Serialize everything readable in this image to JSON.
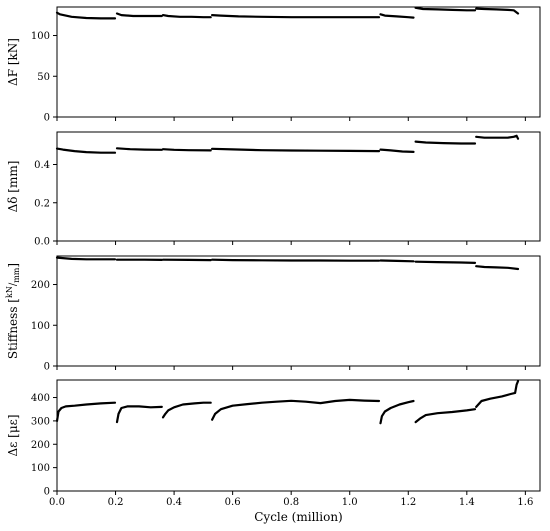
{
  "chart_data": [
    {
      "type": "line",
      "ylabel": "ΔF [kN]",
      "ylim": [
        0,
        135
      ],
      "xlim": [
        0,
        1.65
      ],
      "yticks": [
        0,
        50,
        100
      ],
      "segments": [
        {
          "x": [
            0.0,
            0.01,
            0.05,
            0.1,
            0.15,
            0.198
          ],
          "y": [
            128,
            126,
            123,
            121.5,
            121,
            121
          ]
        },
        {
          "x": [
            0.205,
            0.22,
            0.26,
            0.3,
            0.34,
            0.358
          ],
          "y": [
            127,
            125,
            124,
            124,
            124,
            124
          ]
        },
        {
          "x": [
            0.362,
            0.38,
            0.42,
            0.46,
            0.5,
            0.525
          ],
          "y": [
            125,
            124,
            123,
            123,
            122.5,
            122.5
          ]
        },
        {
          "x": [
            0.53,
            0.56,
            0.62,
            0.7,
            0.8,
            0.9,
            1.0,
            1.05,
            1.1
          ],
          "y": [
            125,
            124.5,
            123.5,
            123,
            122.5,
            122.5,
            122.5,
            122.5,
            122.5
          ]
        },
        {
          "x": [
            1.105,
            1.12,
            1.16,
            1.2,
            1.218
          ],
          "y": [
            126,
            124.5,
            123.5,
            122.5,
            122
          ]
        },
        {
          "x": [
            1.225,
            1.25,
            1.3,
            1.35,
            1.4,
            1.428
          ],
          "y": [
            134,
            132.5,
            132,
            131.5,
            131,
            131
          ]
        },
        {
          "x": [
            1.432,
            1.46,
            1.5,
            1.54,
            1.56,
            1.575
          ],
          "y": [
            133,
            132.5,
            132,
            131.5,
            131,
            127
          ]
        }
      ]
    },
    {
      "type": "line",
      "ylabel": "Δδ [mm]",
      "ylim": [
        0,
        0.57
      ],
      "xlim": [
        0,
        1.65
      ],
      "yticks": [
        0.0,
        0.2,
        0.4
      ],
      "yticklabels": [
        "0.0",
        "0.2",
        "0.4"
      ],
      "segments": [
        {
          "x": [
            0.0,
            0.02,
            0.06,
            0.1,
            0.15,
            0.198
          ],
          "y": [
            0.483,
            0.478,
            0.47,
            0.465,
            0.462,
            0.462
          ]
        },
        {
          "x": [
            0.205,
            0.25,
            0.3,
            0.358
          ],
          "y": [
            0.485,
            0.48,
            0.478,
            0.477
          ]
        },
        {
          "x": [
            0.362,
            0.4,
            0.45,
            0.525
          ],
          "y": [
            0.48,
            0.477,
            0.475,
            0.474
          ]
        },
        {
          "x": [
            0.53,
            0.6,
            0.7,
            0.8,
            0.9,
            1.0,
            1.1
          ],
          "y": [
            0.482,
            0.479,
            0.475,
            0.473,
            0.472,
            0.471,
            0.47
          ]
        },
        {
          "x": [
            1.105,
            1.14,
            1.18,
            1.218
          ],
          "y": [
            0.478,
            0.474,
            0.468,
            0.466
          ]
        },
        {
          "x": [
            1.225,
            1.26,
            1.32,
            1.38,
            1.428
          ],
          "y": [
            0.52,
            0.515,
            0.512,
            0.51,
            0.51
          ]
        },
        {
          "x": [
            1.432,
            1.46,
            1.5,
            1.54,
            1.56,
            1.57,
            1.575
          ],
          "y": [
            0.545,
            0.54,
            0.54,
            0.54,
            0.545,
            0.55,
            0.535
          ]
        }
      ]
    },
    {
      "type": "line",
      "ylabel": "Stiffness [kN/mm]",
      "ylabel_main": "Stiffness [",
      "ylabel_num": "kN",
      "ylabel_den": "mm",
      "ylabel_close": "]",
      "ylim": [
        0,
        270
      ],
      "xlim": [
        0,
        1.65
      ],
      "yticks": [
        0,
        100,
        200
      ],
      "segments": [
        {
          "x": [
            0.0,
            0.05,
            0.1,
            0.15,
            0.198
          ],
          "y": [
            266,
            263,
            262,
            262,
            262
          ]
        },
        {
          "x": [
            0.205,
            0.3,
            0.358
          ],
          "y": [
            261,
            261,
            260.5
          ]
        },
        {
          "x": [
            0.362,
            0.45,
            0.525
          ],
          "y": [
            261,
            260.5,
            260
          ]
        },
        {
          "x": [
            0.53,
            0.6,
            0.7,
            0.8,
            0.9,
            1.0,
            1.1
          ],
          "y": [
            261,
            260,
            259.5,
            259,
            259,
            258.5,
            258.5
          ]
        },
        {
          "x": [
            1.105,
            1.16,
            1.218
          ],
          "y": [
            259,
            258,
            257
          ]
        },
        {
          "x": [
            1.225,
            1.3,
            1.38,
            1.428
          ],
          "y": [
            256,
            255,
            254,
            253
          ]
        },
        {
          "x": [
            1.432,
            1.46,
            1.5,
            1.54,
            1.575
          ],
          "y": [
            245,
            243,
            242,
            241,
            238
          ]
        }
      ]
    },
    {
      "type": "line",
      "ylabel": "Δε [με]",
      "ylim": [
        0,
        475
      ],
      "xlim": [
        0,
        1.65
      ],
      "xlabel": "Cycle (million)",
      "xticks": [
        0.0,
        0.2,
        0.4,
        0.6,
        0.8,
        1.0,
        1.2,
        1.4,
        1.6
      ],
      "xticklabels": [
        "0.0",
        "0.2",
        "0.4",
        "0.6",
        "0.8",
        "1.0",
        "1.2",
        "1.4",
        "1.6"
      ],
      "yticks": [
        0,
        100,
        200,
        300,
        400
      ],
      "segments": [
        {
          "x": [
            0.0,
            0.005,
            0.015,
            0.03,
            0.06,
            0.1,
            0.15,
            0.198
          ],
          "y": [
            300,
            340,
            355,
            362,
            365,
            370,
            375,
            378
          ]
        },
        {
          "x": [
            0.205,
            0.21,
            0.22,
            0.24,
            0.28,
            0.32,
            0.358
          ],
          "y": [
            295,
            330,
            355,
            362,
            362,
            358,
            360
          ]
        },
        {
          "x": [
            0.362,
            0.37,
            0.38,
            0.4,
            0.43,
            0.47,
            0.5,
            0.525
          ],
          "y": [
            315,
            330,
            345,
            358,
            370,
            375,
            378,
            378
          ]
        },
        {
          "x": [
            0.53,
            0.54,
            0.56,
            0.6,
            0.65,
            0.7,
            0.75,
            0.8,
            0.85,
            0.9,
            0.95,
            1.0,
            1.05,
            1.1
          ],
          "y": [
            305,
            330,
            350,
            365,
            372,
            378,
            382,
            386,
            382,
            376,
            385,
            390,
            387,
            385
          ]
        },
        {
          "x": [
            1.105,
            1.11,
            1.12,
            1.14,
            1.17,
            1.2,
            1.218
          ],
          "y": [
            290,
            320,
            340,
            355,
            370,
            380,
            385
          ]
        },
        {
          "x": [
            1.225,
            1.24,
            1.26,
            1.3,
            1.35,
            1.4,
            1.428
          ],
          "y": [
            295,
            310,
            325,
            333,
            338,
            345,
            350
          ]
        },
        {
          "x": [
            1.432,
            1.45,
            1.48,
            1.52,
            1.55,
            1.565,
            1.57,
            1.575
          ],
          "y": [
            360,
            385,
            395,
            405,
            415,
            420,
            455,
            470
          ]
        }
      ]
    }
  ]
}
